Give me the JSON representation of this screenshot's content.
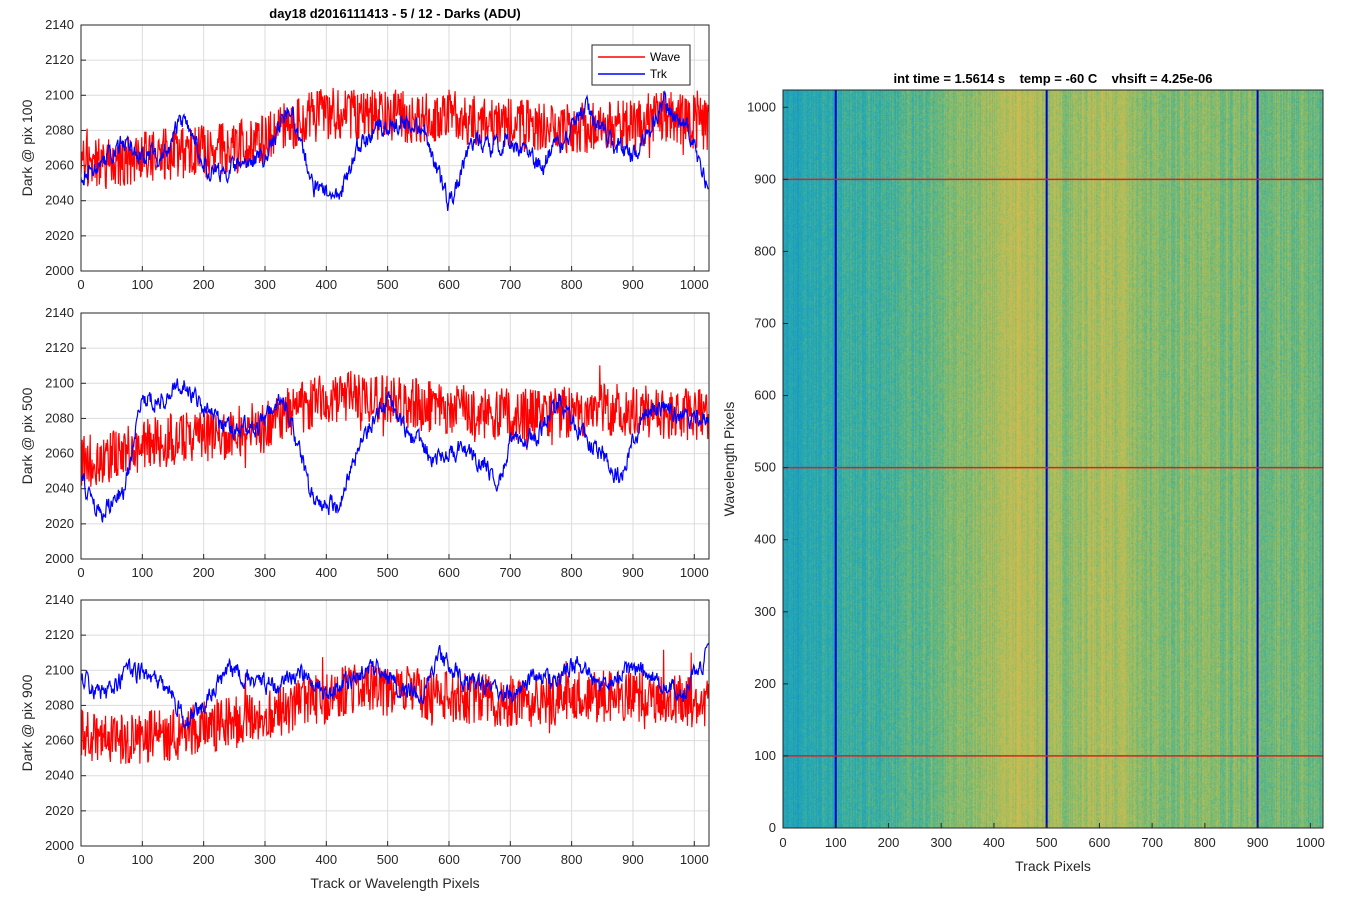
{
  "chart_data": [
    {
      "type": "line",
      "title": "day18 d2016111413 - 5 / 12 - Darks (ADU)",
      "xlabel": "",
      "ylabel": "Dark @ pix 100",
      "xlim": [
        0,
        1024
      ],
      "ylim": [
        2000,
        2140
      ],
      "xticks": [
        "0",
        "100",
        "200",
        "300",
        "400",
        "500",
        "600",
        "700",
        "800",
        "900",
        "1000"
      ],
      "yticks": [
        "2000",
        "2020",
        "2040",
        "2060",
        "2080",
        "2100",
        "2120",
        "2140"
      ],
      "grid": true,
      "legend": {
        "position": "top-right",
        "entries": [
          "Wave",
          "Trk"
        ]
      },
      "series": [
        {
          "name": "Wave",
          "color": "#ff0000",
          "x": [
            0,
            50,
            100,
            150,
            200,
            250,
            300,
            350,
            400,
            450,
            500,
            550,
            600,
            650,
            700,
            750,
            800,
            850,
            900,
            950,
            1000,
            1024
          ],
          "values": [
            2062,
            2060,
            2065,
            2067,
            2068,
            2070,
            2075,
            2085,
            2090,
            2088,
            2089,
            2087,
            2090,
            2085,
            2083,
            2082,
            2080,
            2083,
            2085,
            2088,
            2085,
            2083
          ]
        },
        {
          "name": "Trk",
          "color": "#0000ff",
          "x": [
            0,
            30,
            70,
            100,
            140,
            170,
            200,
            230,
            260,
            300,
            340,
            380,
            420,
            450,
            480,
            520,
            560,
            600,
            640,
            670,
            700,
            750,
            790,
            820,
            860,
            900,
            950,
            990,
            1024
          ],
          "values": [
            2055,
            2060,
            2075,
            2065,
            2068,
            2090,
            2060,
            2055,
            2062,
            2065,
            2095,
            2048,
            2040,
            2070,
            2080,
            2085,
            2080,
            2038,
            2075,
            2070,
            2075,
            2060,
            2075,
            2095,
            2075,
            2065,
            2095,
            2080,
            2045
          ]
        }
      ]
    },
    {
      "type": "line",
      "title": "",
      "xlabel": "",
      "ylabel": "Dark @ pix 500",
      "xlim": [
        0,
        1024
      ],
      "ylim": [
        2000,
        2140
      ],
      "xticks": [
        "0",
        "100",
        "200",
        "300",
        "400",
        "500",
        "600",
        "700",
        "800",
        "900",
        "1000"
      ],
      "yticks": [
        "2000",
        "2020",
        "2040",
        "2060",
        "2080",
        "2100",
        "2120",
        "2140"
      ],
      "grid": true,
      "series": [
        {
          "name": "Wave",
          "color": "#ff0000",
          "x": [
            0,
            50,
            100,
            150,
            200,
            250,
            300,
            350,
            400,
            450,
            500,
            550,
            600,
            650,
            700,
            750,
            800,
            850,
            900,
            950,
            1000,
            1024
          ],
          "values": [
            2055,
            2058,
            2065,
            2068,
            2070,
            2072,
            2075,
            2085,
            2092,
            2093,
            2090,
            2088,
            2085,
            2083,
            2082,
            2083,
            2084,
            2085,
            2085,
            2083,
            2082,
            2082
          ]
        },
        {
          "name": "Trk",
          "color": "#0000ff",
          "x": [
            0,
            30,
            70,
            100,
            130,
            170,
            200,
            240,
            290,
            330,
            380,
            420,
            460,
            500,
            540,
            580,
            620,
            650,
            680,
            700,
            740,
            780,
            810,
            850,
            880,
            920,
            960,
            1000,
            1024
          ],
          "values": [
            2045,
            2025,
            2040,
            2090,
            2090,
            2100,
            2085,
            2075,
            2075,
            2095,
            2030,
            2030,
            2070,
            2090,
            2070,
            2055,
            2065,
            2055,
            2045,
            2065,
            2068,
            2090,
            2075,
            2060,
            2045,
            2085,
            2085,
            2078,
            2082
          ]
        }
      ]
    },
    {
      "type": "line",
      "title": "",
      "xlabel": "Track or Wavelength Pixels",
      "ylabel": "Dark @ pix 900",
      "xlim": [
        0,
        1024
      ],
      "ylim": [
        2000,
        2140
      ],
      "xticks": [
        "0",
        "100",
        "200",
        "300",
        "400",
        "500",
        "600",
        "700",
        "800",
        "900",
        "1000"
      ],
      "yticks": [
        "2000",
        "2020",
        "2040",
        "2060",
        "2080",
        "2100",
        "2120",
        "2140"
      ],
      "grid": true,
      "series": [
        {
          "name": "Wave",
          "color": "#ff0000",
          "x": [
            0,
            50,
            100,
            150,
            200,
            250,
            300,
            350,
            400,
            450,
            500,
            550,
            600,
            650,
            700,
            750,
            800,
            850,
            900,
            950,
            1000,
            1024
          ],
          "values": [
            2062,
            2060,
            2062,
            2063,
            2068,
            2070,
            2075,
            2080,
            2085,
            2090,
            2088,
            2087,
            2085,
            2083,
            2082,
            2083,
            2084,
            2085,
            2085,
            2083,
            2082,
            2082
          ]
        },
        {
          "name": "Trk",
          "color": "#0000ff",
          "x": [
            0,
            40,
            80,
            120,
            150,
            170,
            200,
            240,
            280,
            320,
            360,
            400,
            440,
            480,
            520,
            560,
            580,
            620,
            660,
            700,
            740,
            780,
            810,
            850,
            900,
            940,
            980,
            1024
          ],
          "values": [
            2095,
            2085,
            2100,
            2095,
            2085,
            2070,
            2080,
            2100,
            2095,
            2090,
            2100,
            2085,
            2095,
            2102,
            2090,
            2085,
            2110,
            2095,
            2090,
            2085,
            2095,
            2095,
            2105,
            2090,
            2100,
            2095,
            2085,
            2110
          ]
        }
      ]
    },
    {
      "type": "heatmap",
      "title": "int time = 1.5614 s    temp = -60 C    vhsift = 4.25e-06",
      "xlabel": "Track Pixels",
      "ylabel": "Wavelength Pixels",
      "xlim": [
        0,
        1024
      ],
      "ylim": [
        0,
        1024
      ],
      "xticks": [
        "0",
        "100",
        "200",
        "300",
        "400",
        "500",
        "600",
        "700",
        "800",
        "900",
        "1000"
      ],
      "yticks": [
        "0",
        "100",
        "200",
        "300",
        "400",
        "500",
        "600",
        "700",
        "800",
        "900",
        "1000"
      ],
      "colormap": "parula",
      "column_profile": {
        "x": [
          0,
          100,
          200,
          300,
          400,
          450,
          500,
          550,
          600,
          700,
          800,
          900,
          1024
        ],
        "level": [
          0.15,
          0.3,
          0.4,
          0.55,
          0.7,
          0.85,
          0.72,
          0.65,
          0.78,
          0.62,
          0.6,
          0.6,
          0.5
        ]
      },
      "vlines": {
        "color": "#0000cc",
        "x": [
          100,
          500,
          900
        ]
      },
      "hlines": {
        "color": "#e02020",
        "y": [
          100,
          500,
          900
        ]
      }
    }
  ]
}
